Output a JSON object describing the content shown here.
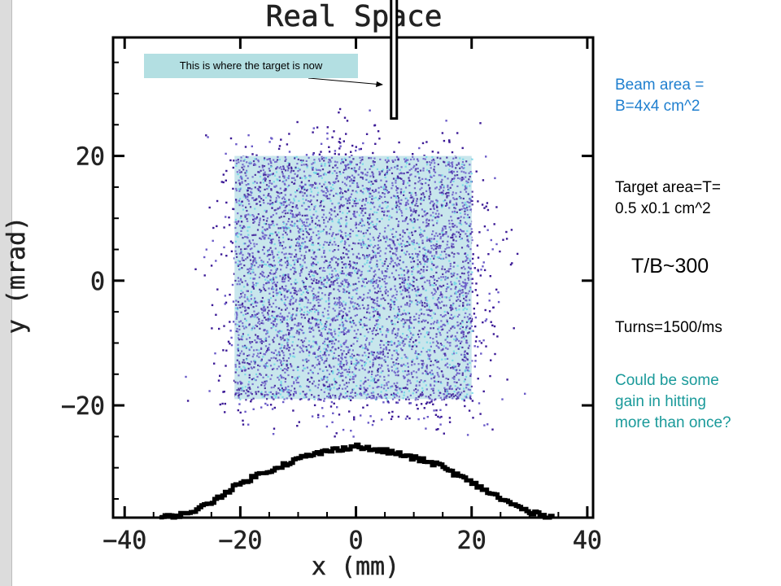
{
  "chart_data": {
    "type": "scatter",
    "title": "Real Space",
    "xlabel": "x (mm)",
    "ylabel": "y (mrad)",
    "xlim": [
      -42,
      41
    ],
    "ylim": [
      -38,
      39
    ],
    "xticks": [
      -40,
      -20,
      0,
      20,
      40
    ],
    "yticks": [
      -20,
      0,
      20
    ],
    "scatter_extent": {
      "x": [
        -33,
        30
      ],
      "y": [
        -25,
        28
      ]
    },
    "scatter_colors": [
      "#3c1a96",
      "#6a5ac8",
      "#6fd6e6"
    ],
    "beam_box": {
      "x": [
        -21,
        20
      ],
      "y": [
        -19,
        20
      ]
    },
    "target": {
      "x": 6.5,
      "y_from": 26,
      "y_to": 39
    },
    "projection_profile": {
      "x": [
        -34,
        -30,
        -26,
        -22,
        -18,
        -14,
        -10,
        -6,
        -2,
        0,
        2,
        6,
        10,
        14,
        18,
        22,
        26,
        30,
        34
      ],
      "y": [
        -38,
        -37.5,
        -36,
        -33.5,
        -31.5,
        -30,
        -28.5,
        -27.5,
        -26.8,
        -26.5,
        -27,
        -27.5,
        -28.5,
        -29.5,
        -31.5,
        -33.5,
        -35.5,
        -37.2,
        -38
      ]
    }
  },
  "annotations": {
    "callout": "This is where the target is now",
    "beam_area_line1": "Beam area =",
    "beam_area_line2": "B=4x4 cm^2",
    "target_area_line1": "Target area=T=",
    "target_area_line2": "0.5 x0.1 cm^2",
    "ratio": "T/B~300",
    "turns": "Turns=1500/ms",
    "gain_line1": "Could be some",
    "gain_line2": "gain in hitting",
    "gain_line3": "more than once?"
  },
  "colors": {
    "beam_box_fill": "#c8e6ec",
    "callout_bg": "#b3dfe2",
    "blue_text": "#1f7fcf",
    "teal_text": "#1a9a9a"
  }
}
